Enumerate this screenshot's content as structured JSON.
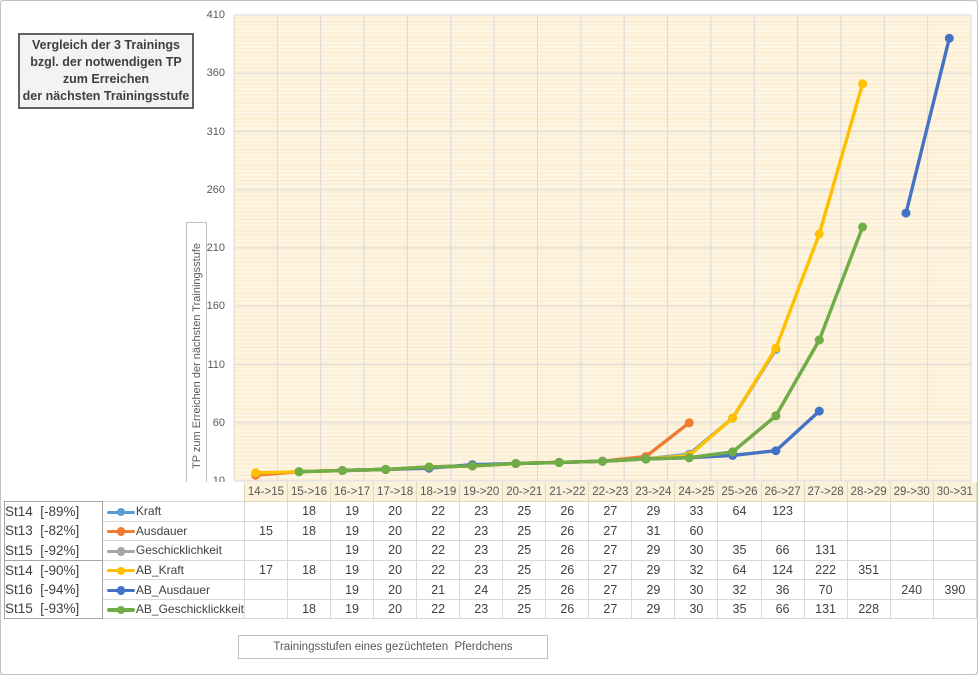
{
  "chart": {
    "title_lines": [
      "Vergleich der 3 Trainings",
      "bzgl. der notwendigen TP",
      "zum Erreichen",
      "der nächsten Trainingsstufe"
    ],
    "y_axis_title": "TP zum Erreichen der nächsten Trainingsstufe",
    "x_axis_title": "Trainingsstufen eines gezüchteten  Pferdchens",
    "y_ticks": [
      410,
      360,
      310,
      260,
      210,
      160,
      110,
      60,
      10
    ]
  },
  "chart_data": {
    "type": "line",
    "categories": [
      "14->15",
      "15->16",
      "16->17",
      "17->18",
      "18->19",
      "19->20",
      "20->21",
      "21->22",
      "22->23",
      "23->24",
      "24->25",
      "25->26",
      "26->27",
      "27->28",
      "28->29",
      "29->30",
      "30->31"
    ],
    "series": [
      {
        "name": "Kraft",
        "stage_label": "St14  [-89%]",
        "color": "#5B9BD5",
        "values": [
          null,
          18,
          19,
          20,
          22,
          23,
          25,
          26,
          27,
          29,
          33,
          64,
          123,
          null,
          null,
          null,
          null
        ]
      },
      {
        "name": "Ausdauer",
        "stage_label": "St13  [-82%]",
        "color": "#ED7D31",
        "values": [
          15,
          18,
          19,
          20,
          22,
          23,
          25,
          26,
          27,
          31,
          60,
          null,
          null,
          null,
          null,
          null,
          null
        ]
      },
      {
        "name": "Geschicklichkeit",
        "stage_label": "St15  [-92%]",
        "color": "#A5A5A5",
        "values": [
          null,
          null,
          19,
          20,
          22,
          23,
          25,
          26,
          27,
          29,
          30,
          35,
          66,
          131,
          null,
          null,
          null
        ]
      },
      {
        "name": "AB_Kraft",
        "stage_label": "St14  [-90%]",
        "color": "#FFC000",
        "values": [
          17,
          18,
          19,
          20,
          22,
          23,
          25,
          26,
          27,
          29,
          32,
          64,
          124,
          222,
          351,
          null,
          null
        ]
      },
      {
        "name": "AB_Ausdauer",
        "stage_label": "St16  [-94%]",
        "color": "#4472C4",
        "values": [
          null,
          null,
          19,
          20,
          21,
          24,
          25,
          26,
          27,
          29,
          30,
          32,
          36,
          70,
          null,
          240,
          390
        ]
      },
      {
        "name": "AB_Geschicklickkeit",
        "stage_label": "St15  [-93%]",
        "color": "#70AD47",
        "values": [
          null,
          18,
          19,
          20,
          22,
          23,
          25,
          26,
          27,
          29,
          30,
          35,
          66,
          131,
          228,
          null,
          null
        ]
      }
    ],
    "ylim": [
      10,
      410
    ],
    "y_major_step": 50,
    "grid": true,
    "legend_position": "table-left",
    "plot_bg": "#FCEFD5",
    "grid_color": "#D9D9D9"
  }
}
